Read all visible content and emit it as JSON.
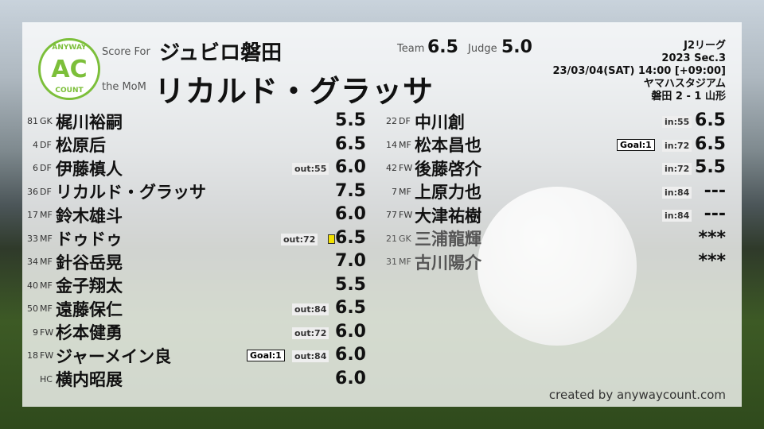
{
  "header": {
    "score_for_label": "Score For",
    "team": "ジュビロ磐田",
    "mom_label": "the MoM",
    "mom": "リカルド・グラッサ",
    "team_label": "Team",
    "team_score": "6.5",
    "judge_label": "Judge",
    "judge_score": "5.0"
  },
  "logo": {
    "top": "ANYWAY",
    "center": "AC",
    "bottom": "COUNT",
    "color": "#7cbf3a"
  },
  "match": {
    "league": "J2リーグ",
    "section": "2023 Sec.3",
    "datetime": "23/03/04(SAT) 14:00 [+09:00]",
    "venue": "ヤマハスタジアム",
    "result": "磐田 2 - 1 山形"
  },
  "starters": [
    {
      "num": "81",
      "pos": "GK",
      "name": "梶川裕嗣",
      "rating": "5.5"
    },
    {
      "num": "4",
      "pos": "DF",
      "name": "松原后",
      "rating": "6.5"
    },
    {
      "num": "6",
      "pos": "DF",
      "name": "伊藤槙人",
      "sub": "out:55",
      "rating": "6.0"
    },
    {
      "num": "36",
      "pos": "DF",
      "name": "リカルド・グラッサ",
      "rating": "7.5"
    },
    {
      "num": "17",
      "pos": "MF",
      "name": "鈴木雄斗",
      "rating": "6.0"
    },
    {
      "num": "33",
      "pos": "MF",
      "name": "ドゥドゥ",
      "sub": "out:72",
      "card": "yellow",
      "rating": "6.5"
    },
    {
      "num": "34",
      "pos": "MF",
      "name": "針谷岳晃",
      "rating": "7.0"
    },
    {
      "num": "40",
      "pos": "MF",
      "name": "金子翔太",
      "rating": "5.5"
    },
    {
      "num": "50",
      "pos": "MF",
      "name": "遠藤保仁",
      "sub": "out:84",
      "rating": "6.5"
    },
    {
      "num": "9",
      "pos": "FW",
      "name": "杉本健勇",
      "sub": "out:72",
      "rating": "6.0"
    },
    {
      "num": "18",
      "pos": "FW",
      "name": "ジャーメイン良",
      "goal": "Goal:1",
      "sub": "out:84",
      "rating": "6.0"
    },
    {
      "num": "",
      "pos": "HC",
      "name": "横内昭展",
      "rating": "6.0"
    }
  ],
  "subs": [
    {
      "num": "22",
      "pos": "DF",
      "name": "中川創",
      "sub": "in:55",
      "rating": "6.5"
    },
    {
      "num": "14",
      "pos": "MF",
      "name": "松本昌也",
      "goal": "Goal:1",
      "sub": "in:72",
      "rating": "6.5"
    },
    {
      "num": "42",
      "pos": "FW",
      "name": "後藤啓介",
      "sub": "in:72",
      "rating": "5.5"
    },
    {
      "num": "7",
      "pos": "MF",
      "name": "上原力也",
      "sub": "in:84",
      "rating": "---"
    },
    {
      "num": "77",
      "pos": "FW",
      "name": "大津祐樹",
      "sub": "in:84",
      "rating": "---"
    },
    {
      "num": "21",
      "pos": "GK",
      "name": "三浦龍輝",
      "rating": "***",
      "unused": true
    },
    {
      "num": "31",
      "pos": "MF",
      "name": "古川陽介",
      "rating": "***",
      "unused": true
    }
  ],
  "footer": "created by anywaycount.com"
}
